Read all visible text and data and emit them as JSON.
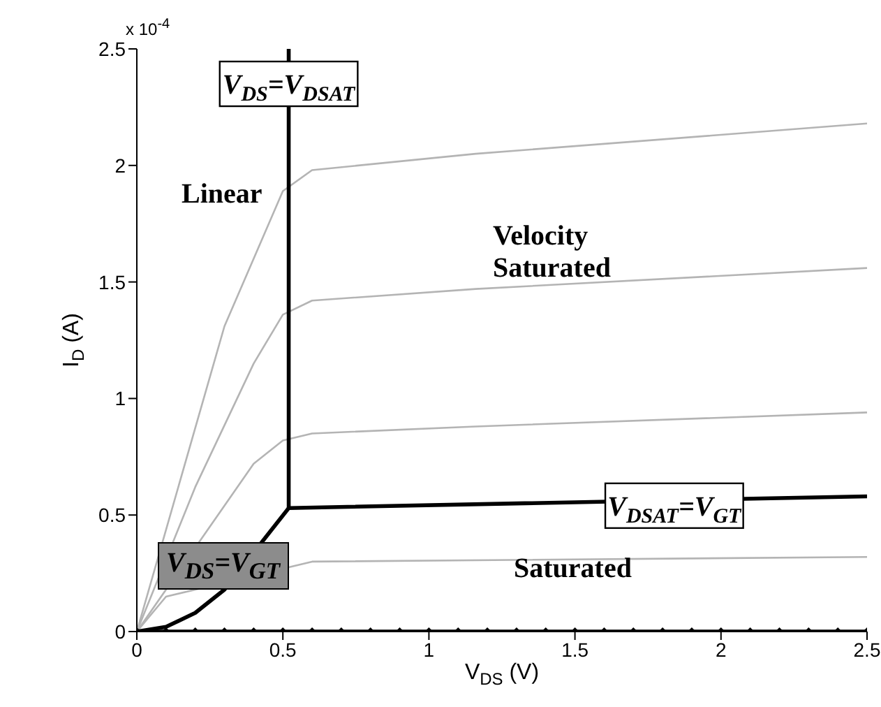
{
  "chart_data": {
    "type": "line",
    "xlabel": "V$_{DS}$ (V)",
    "ylabel": "I$_{D}$ (A)",
    "xlim": [
      0,
      2.5
    ],
    "xticks": [
      0,
      0.5,
      1,
      1.5,
      2,
      2.5
    ],
    "ylim": [
      0,
      2.5
    ],
    "yticks": [
      0,
      0.5,
      1,
      1.5,
      2,
      2.5
    ],
    "line_style": "solid",
    "marker": "none",
    "series": [
      {
        "color": "#b4b4b4",
        "x": [
          0,
          0.3,
          0.5,
          0.6,
          1.16,
          2.5
        ],
        "values": [
          0,
          1.31,
          1.89,
          1.98,
          2.05,
          2.18
        ]
      },
      {
        "color": "#b4b4b4",
        "x": [
          0,
          0.2,
          0.4,
          0.5,
          0.6,
          1.16,
          2.5
        ],
        "values": [
          0,
          0.62,
          1.15,
          1.36,
          1.42,
          1.47,
          1.56
        ]
      },
      {
        "color": "#b4b4b4",
        "x": [
          0,
          0.4,
          0.5,
          0.6,
          1.16,
          2.5
        ],
        "values": [
          0,
          0.72,
          0.82,
          0.85,
          0.88,
          0.94
        ]
      },
      {
        "color": "#b4b4b4",
        "x": [
          0,
          0.1,
          0.6,
          2.5
        ],
        "values": [
          0,
          0.15,
          0.3,
          0.32
        ]
      },
      {
        "color": "#000000",
        "x": [
          0,
          0.1,
          0.2,
          0.3,
          0.52,
          2.5
        ],
        "values": [
          0,
          0.02,
          0.08,
          0.18,
          0.53,
          0.58
        ]
      },
      {
        "color": "#000000",
        "x": [
          0.52,
          0.52
        ],
        "values": [
          0.53,
          2.5
        ]
      },
      {
        "color": "#000000",
        "marker": "diamond",
        "x": [
          0,
          0.1,
          0.2,
          0.3,
          0.4,
          0.5,
          0.6,
          0.7,
          0.8,
          0.9,
          1,
          1.1,
          1.2,
          1.3,
          1.4,
          1.5,
          1.6,
          1.7,
          1.8,
          1.9,
          2,
          2.1,
          2.2,
          2.3,
          2.4,
          2.5
        ],
        "values": [
          0,
          0,
          0,
          0,
          0,
          0,
          0,
          0,
          0,
          0,
          0,
          0,
          0,
          0,
          0,
          0,
          0,
          0,
          0,
          0,
          0,
          0,
          0,
          0,
          0,
          0
        ]
      }
    ],
    "annotations": [
      "x 10$^{-4}$",
      "Linear",
      "Velocity Saturated",
      "Saturated",
      {
        "text": "V$_{DS}$=V$_{DSAT}$",
        "x": 0.52,
        "y": 2.35
      },
      {
        "text": "V$_{DSAT}$=V$_{GT}$",
        "x": 1.84,
        "y": 0.54
      },
      "V$_{DS}$=V$_{GT}$"
    ]
  }
}
